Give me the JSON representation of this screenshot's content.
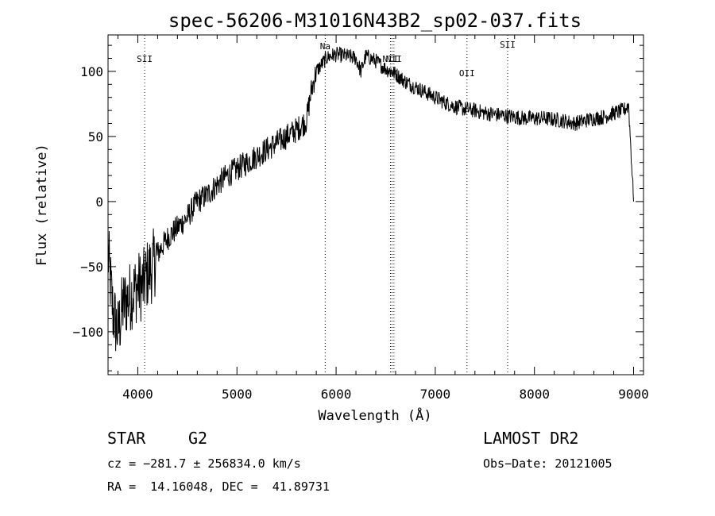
{
  "chart_data": {
    "type": "line",
    "title": "spec-56206-M31016N43B2_sp02-037.fits",
    "xlabel": "Wavelength (Å)",
    "ylabel": "Flux (relative)",
    "xlim": [
      3700,
      9100
    ],
    "ylim": [
      -133,
      128
    ],
    "xticks": [
      4000,
      5000,
      6000,
      7000,
      8000,
      9000
    ],
    "yticks": [
      -100,
      -50,
      0,
      50,
      100
    ],
    "grid": false,
    "series": [
      {
        "x": [
          3700,
          3750,
          3800,
          3850,
          3900,
          3950,
          4000,
          4050,
          4100,
          4150,
          4200,
          4300,
          4400,
          4500,
          4600,
          4700,
          4800,
          4900,
          5000,
          5100,
          5200,
          5300,
          5400,
          5500,
          5600,
          5700,
          5750,
          5800,
          5850,
          5900,
          5950,
          6000,
          6100,
          6200,
          6250,
          6300,
          6350,
          6400,
          6450,
          6500,
          6550,
          6600,
          6650,
          6700,
          6800,
          6900,
          7000,
          7100,
          7200,
          7300,
          7400,
          7500,
          7600,
          7700,
          7800,
          7900,
          8000,
          8100,
          8200,
          8300,
          8400,
          8500,
          8600,
          8700,
          8800,
          8900,
          8950,
          9000
        ],
        "y": [
          -40,
          -85,
          -100,
          -80,
          -75,
          -70,
          -65,
          -65,
          -55,
          -50,
          -40,
          -28,
          -20,
          -12,
          0,
          5,
          13,
          20,
          25,
          30,
          35,
          40,
          45,
          50,
          55,
          62,
          85,
          100,
          105,
          110,
          112,
          113,
          112,
          110,
          100,
          112,
          110,
          108,
          105,
          102,
          100,
          98,
          95,
          92,
          88,
          84,
          80,
          76,
          73,
          71,
          70,
          68,
          67,
          66,
          65,
          64,
          64,
          64,
          63,
          62,
          60,
          62,
          64,
          65,
          68,
          70,
          74,
          0
        ]
      }
    ],
    "annotations": [
      {
        "label": "SII",
        "x": 4069
      },
      {
        "label": "Na",
        "x": 5890
      },
      {
        "label": "NII",
        "x": 6548
      },
      {
        "label": "Hα",
        "x": 6563
      },
      {
        "label": "NII",
        "x": 6583
      },
      {
        "label": "OII",
        "x": 7320
      },
      {
        "label": "SII",
        "x": 7730
      }
    ]
  },
  "info": {
    "class_label": "STAR",
    "subclass": "G2",
    "survey": "LAMOST DR2",
    "cz": "cz = −281.7 ± 256834.0 km/s",
    "obs_date": "Obs−Date: 20121005",
    "coords": "RA =  14.16048, DEC =  41.89731"
  }
}
